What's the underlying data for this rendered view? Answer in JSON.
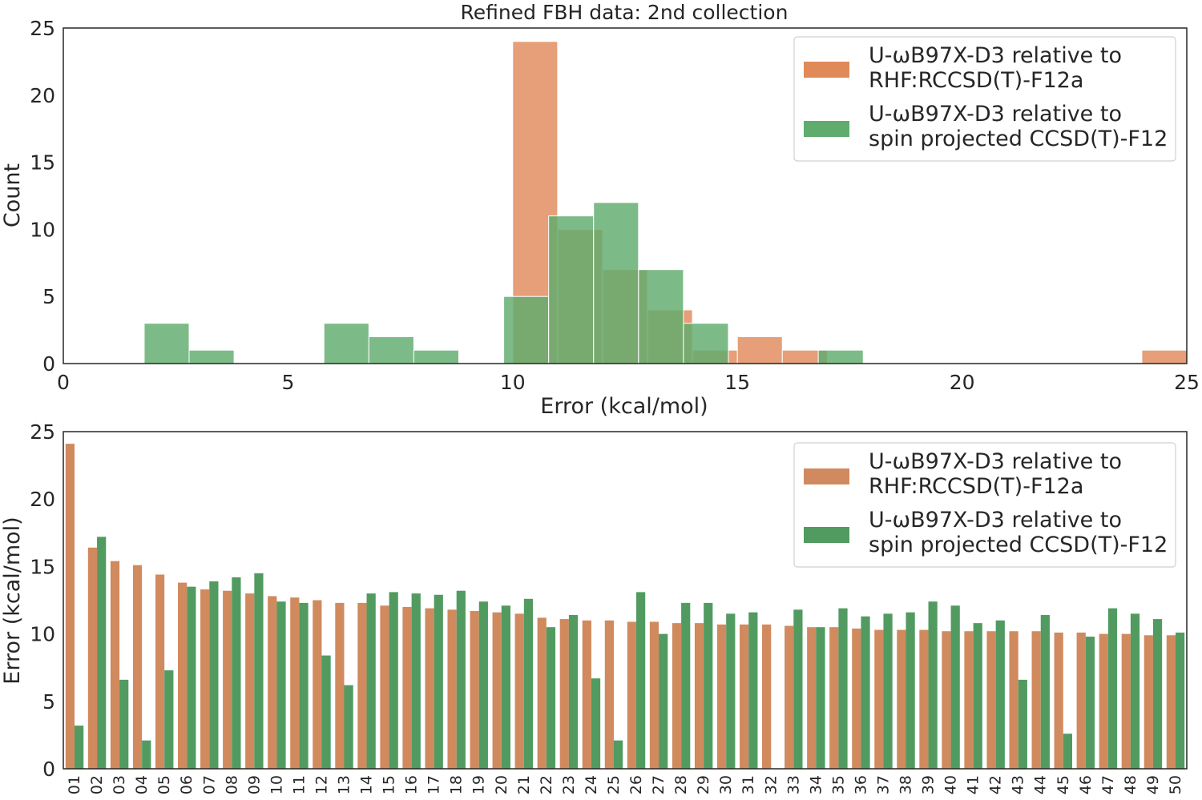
{
  "chart_data": [
    {
      "type": "bar",
      "title": "Refined FBH data: 2nd collection",
      "xlabel": "Error (kcal/mol)",
      "ylabel": "Count",
      "xlim": [
        0,
        25
      ],
      "ylim": [
        0,
        25
      ],
      "xticks": [
        "0",
        "5",
        "10",
        "15",
        "20",
        "25"
      ],
      "yticks": [
        "0",
        "5",
        "10",
        "15",
        "20",
        "25"
      ],
      "grid": false,
      "legend_position": "top-right",
      "series": [
        {
          "name": "U-ωB97X-D3 relative to\nRHF:RCCSD(T)-F12a",
          "color": "#e08a5a",
          "bins": [
            {
              "start": 10.0,
              "end": 11.0,
              "count": 24
            },
            {
              "start": 11.0,
              "end": 12.0,
              "count": 10
            },
            {
              "start": 12.0,
              "end": 13.0,
              "count": 7
            },
            {
              "start": 13.0,
              "end": 14.0,
              "count": 4
            },
            {
              "start": 14.0,
              "end": 15.0,
              "count": 1
            },
            {
              "start": 15.0,
              "end": 16.0,
              "count": 2
            },
            {
              "start": 16.0,
              "end": 17.0,
              "count": 1
            },
            {
              "start": 24.0,
              "end": 25.0,
              "count": 1
            }
          ]
        },
        {
          "name": "U-ωB97X-D3 relative to\nspin projected CCSD(T)-F12",
          "color": "#5fac6e",
          "bins": [
            {
              "start": 1.8,
              "end": 2.8,
              "count": 3
            },
            {
              "start": 2.8,
              "end": 3.8,
              "count": 1
            },
            {
              "start": 5.8,
              "end": 6.8,
              "count": 3
            },
            {
              "start": 6.8,
              "end": 7.8,
              "count": 2
            },
            {
              "start": 7.8,
              "end": 8.8,
              "count": 1
            },
            {
              "start": 9.8,
              "end": 10.8,
              "count": 5
            },
            {
              "start": 10.8,
              "end": 11.8,
              "count": 11
            },
            {
              "start": 11.8,
              "end": 12.8,
              "count": 12
            },
            {
              "start": 12.8,
              "end": 13.8,
              "count": 7
            },
            {
              "start": 13.8,
              "end": 14.8,
              "count": 3
            },
            {
              "start": 14.8,
              "end": 15.8,
              "count": 0
            },
            {
              "start": 15.8,
              "end": 16.8,
              "count": 0
            },
            {
              "start": 16.8,
              "end": 17.8,
              "count": 1
            }
          ]
        }
      ]
    },
    {
      "type": "bar",
      "title": "",
      "xlabel": "",
      "ylabel": "Error (kcal/mol)",
      "ylim": [
        0,
        25
      ],
      "yticks": [
        "0",
        "5",
        "10",
        "15",
        "20",
        "25"
      ],
      "grid": false,
      "legend_position": "top-right",
      "categories": [
        "01",
        "02",
        "03",
        "04",
        "05",
        "06",
        "07",
        "08",
        "09",
        "10",
        "11",
        "12",
        "13",
        "14",
        "15",
        "16",
        "17",
        "18",
        "19",
        "20",
        "21",
        "22",
        "23",
        "24",
        "25",
        "26",
        "27",
        "28",
        "29",
        "30",
        "31",
        "32",
        "33",
        "34",
        "35",
        "36",
        "37",
        "38",
        "39",
        "40",
        "41",
        "42",
        "43",
        "44",
        "45",
        "46",
        "47",
        "48",
        "49",
        "50"
      ],
      "series": [
        {
          "name": "U-ωB97X-D3 relative to\nRHF:RCCSD(T)-F12a",
          "color": "#d08a5e",
          "values": [
            24.1,
            16.4,
            15.4,
            15.1,
            14.4,
            13.8,
            13.3,
            13.2,
            13.0,
            12.8,
            12.7,
            12.5,
            12.3,
            12.3,
            12.1,
            12.0,
            11.9,
            11.8,
            11.7,
            11.6,
            11.5,
            11.2,
            11.1,
            11.0,
            11.0,
            10.9,
            10.9,
            10.8,
            10.8,
            10.7,
            10.7,
            10.7,
            10.6,
            10.5,
            10.5,
            10.4,
            10.3,
            10.3,
            10.3,
            10.2,
            10.2,
            10.2,
            10.2,
            10.2,
            10.1,
            10.1,
            10.0,
            10.0,
            9.9,
            9.9
          ]
        },
        {
          "name": "U-ωB97X-D3 relative to\nspin projected CCSD(T)-F12",
          "color": "#519b61",
          "values": [
            3.2,
            17.2,
            6.6,
            2.1,
            7.3,
            13.5,
            13.9,
            14.2,
            14.5,
            12.4,
            12.3,
            8.4,
            6.2,
            13.0,
            13.1,
            13.0,
            12.9,
            13.2,
            12.4,
            12.1,
            12.6,
            10.5,
            11.4,
            6.7,
            2.1,
            13.1,
            10.0,
            12.3,
            12.3,
            11.5,
            11.6,
            0.0,
            11.8,
            10.5,
            11.9,
            11.3,
            11.5,
            11.6,
            12.4,
            12.1,
            10.8,
            11.0,
            6.6,
            11.4,
            2.6,
            9.8,
            11.9,
            11.5,
            11.1,
            10.1
          ]
        }
      ]
    }
  ]
}
